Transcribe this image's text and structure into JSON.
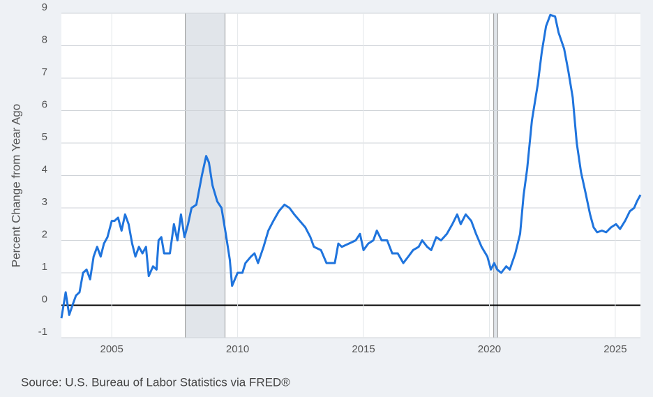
{
  "chart_data": {
    "type": "line",
    "y_axis_label": "Percent Change from Year Ago",
    "source": "Source: U.S. Bureau of Labor Statistics via FRED®",
    "xlim": [
      2003,
      2026
    ],
    "xticks": [
      2005,
      2010,
      2015,
      2020,
      2025
    ],
    "ylim": [
      -1,
      9
    ],
    "yticks": [
      -1,
      0,
      1,
      2,
      3,
      4,
      5,
      6,
      7,
      8,
      9
    ],
    "grid": true,
    "recessions": [
      [
        2007.92,
        2009.5
      ],
      [
        2020.17,
        2020.33
      ]
    ],
    "series": [
      {
        "color": "#1f74dd",
        "x": [
          2003.0,
          2003.17,
          2003.31,
          2003.44,
          2003.58,
          2003.72,
          2003.86,
          2004.0,
          2004.14,
          2004.28,
          2004.42,
          2004.56,
          2004.69,
          2004.83,
          2005.0,
          2005.11,
          2005.25,
          2005.39,
          2005.53,
          2005.67,
          2005.81,
          2005.94,
          2006.08,
          2006.22,
          2006.36,
          2006.47,
          2006.64,
          2006.78,
          2006.86,
          2006.97,
          2007.08,
          2007.31,
          2007.47,
          2007.61,
          2007.75,
          2007.89,
          2008.03,
          2008.17,
          2008.36,
          2008.58,
          2008.75,
          2008.86,
          2009.0,
          2009.19,
          2009.36,
          2009.53,
          2009.69,
          2009.78,
          2010.0,
          2010.19,
          2010.31,
          2010.53,
          2010.67,
          2010.81,
          2011.03,
          2011.22,
          2011.42,
          2011.64,
          2011.86,
          2012.06,
          2012.25,
          2012.47,
          2012.69,
          2012.89,
          2013.03,
          2013.31,
          2013.53,
          2013.72,
          2013.86,
          2014.0,
          2014.14,
          2014.42,
          2014.69,
          2014.86,
          2015.0,
          2015.19,
          2015.39,
          2015.53,
          2015.72,
          2015.94,
          2016.14,
          2016.36,
          2016.58,
          2016.78,
          2016.97,
          2017.19,
          2017.33,
          2017.53,
          2017.69,
          2017.89,
          2018.08,
          2018.31,
          2018.53,
          2018.72,
          2018.86,
          2019.06,
          2019.28,
          2019.47,
          2019.69,
          2019.92,
          2020.06,
          2020.19,
          2020.31,
          2020.47,
          2020.67,
          2020.81,
          2021.03,
          2021.22,
          2021.36,
          2021.5,
          2021.69,
          2021.92,
          2022.08,
          2022.25,
          2022.42,
          2022.61,
          2022.75,
          2022.97,
          2023.14,
          2023.31,
          2023.47,
          2023.64,
          2023.81,
          2024.0,
          2024.14,
          2024.28,
          2024.47,
          2024.64,
          2024.83,
          2025.03,
          2025.19,
          2025.39,
          2025.58,
          2025.75,
          2025.86,
          2026.0
        ],
        "values": [
          -0.4,
          0.4,
          -0.3,
          0.0,
          0.3,
          0.4,
          1.0,
          1.1,
          0.8,
          1.5,
          1.8,
          1.5,
          1.9,
          2.1,
          2.6,
          2.6,
          2.7,
          2.3,
          2.8,
          2.5,
          1.9,
          1.5,
          1.8,
          1.6,
          1.8,
          0.9,
          1.2,
          1.1,
          2.0,
          2.1,
          1.6,
          1.6,
          2.5,
          2.0,
          2.8,
          2.1,
          2.5,
          3.0,
          3.1,
          4.0,
          4.6,
          4.4,
          3.7,
          3.2,
          3.0,
          2.2,
          1.4,
          0.6,
          1.0,
          1.0,
          1.3,
          1.5,
          1.6,
          1.3,
          1.8,
          2.3,
          2.6,
          2.9,
          3.1,
          3.0,
          2.8,
          2.6,
          2.4,
          2.1,
          1.8,
          1.7,
          1.3,
          1.3,
          1.3,
          1.9,
          1.8,
          1.9,
          2.0,
          2.2,
          1.7,
          1.9,
          2.0,
          2.3,
          2.0,
          2.0,
          1.6,
          1.6,
          1.3,
          1.5,
          1.7,
          1.8,
          2.0,
          1.8,
          1.7,
          2.1,
          2.0,
          2.2,
          2.5,
          2.8,
          2.5,
          2.8,
          2.6,
          2.2,
          1.8,
          1.5,
          1.1,
          1.3,
          1.1,
          1.0,
          1.2,
          1.1,
          1.6,
          2.2,
          3.4,
          4.2,
          5.7,
          6.8,
          7.8,
          8.6,
          8.95,
          8.9,
          8.4,
          7.9,
          7.2,
          6.4,
          5.0,
          4.1,
          3.5,
          2.8,
          2.4,
          2.25,
          2.3,
          2.25,
          2.4,
          2.5,
          2.35,
          2.6,
          2.9,
          3.0,
          3.2,
          3.4
        ]
      }
    ]
  }
}
